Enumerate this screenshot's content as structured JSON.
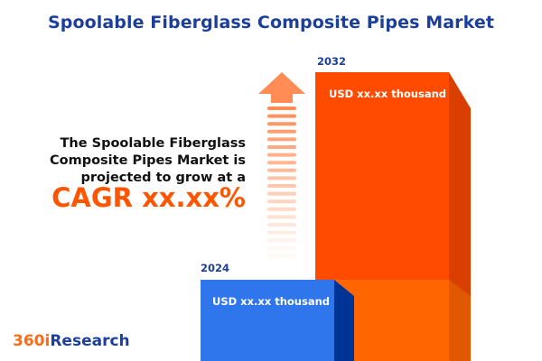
{
  "title": "Spoolable Fiberglass Composite Pipes Market",
  "description": "The Spoolable Fiberglass Composite Pipes Market is projected to grow at a",
  "cagr": "CAGR xx.xx%",
  "bars": [
    {
      "year": "2024",
      "value_label": "USD xx.xx thousand",
      "color": "#2f76ec",
      "side_color": "#003494"
    },
    {
      "year": "2032",
      "value_label": "USD xx.xx thousand",
      "color": "#ff4b00",
      "side_color": "#d94000"
    }
  ],
  "growth_arrow": {
    "icon": "up-arrow-icon",
    "color": "#ff8c55"
  },
  "logo": {
    "part1": "360i",
    "part2": "Research"
  }
}
